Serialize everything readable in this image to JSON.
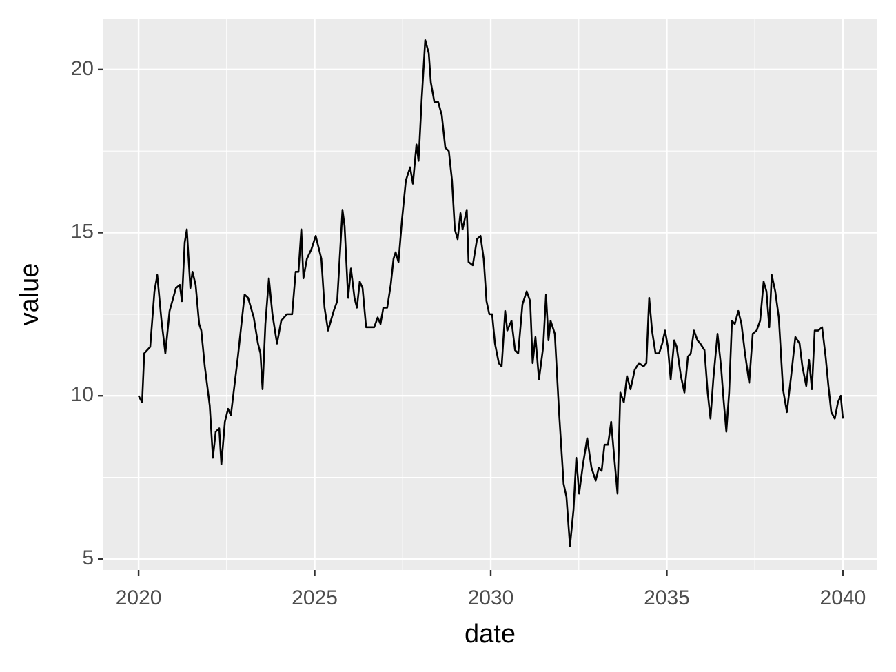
{
  "chart_data": {
    "type": "line",
    "xlabel": "date",
    "ylabel": "value",
    "x": [
      2020.0,
      2020.1,
      2020.16,
      2020.33,
      2020.45,
      2020.53,
      2020.65,
      2020.76,
      2020.88,
      2021.06,
      2021.17,
      2021.23,
      2021.31,
      2021.37,
      2021.47,
      2021.53,
      2021.62,
      2021.72,
      2021.78,
      2021.88,
      2022.02,
      2022.11,
      2022.19,
      2022.29,
      2022.35,
      2022.45,
      2022.54,
      2022.62,
      2022.82,
      2023.01,
      2023.11,
      2023.27,
      2023.39,
      2023.46,
      2023.52,
      2023.6,
      2023.7,
      2023.8,
      2023.93,
      2024.05,
      2024.21,
      2024.36,
      2024.46,
      2024.54,
      2024.62,
      2024.68,
      2024.78,
      2024.91,
      2025.03,
      2025.19,
      2025.28,
      2025.38,
      2025.54,
      2025.64,
      2025.79,
      2025.85,
      2025.95,
      2026.03,
      2026.13,
      2026.2,
      2026.28,
      2026.36,
      2026.46,
      2026.58,
      2026.69,
      2026.79,
      2026.87,
      2026.95,
      2027.06,
      2027.16,
      2027.24,
      2027.3,
      2027.38,
      2027.48,
      2027.59,
      2027.71,
      2027.79,
      2027.89,
      2027.95,
      2028.04,
      2028.14,
      2028.24,
      2028.3,
      2028.4,
      2028.51,
      2028.61,
      2028.71,
      2028.81,
      2028.9,
      2028.98,
      2029.06,
      2029.14,
      2029.2,
      2029.32,
      2029.37,
      2029.49,
      2029.61,
      2029.71,
      2029.8,
      2029.88,
      2029.96,
      2030.04,
      2030.12,
      2030.23,
      2030.31,
      2030.41,
      2030.47,
      2030.59,
      2030.69,
      2030.78,
      2030.9,
      2031.02,
      2031.12,
      2031.19,
      2031.27,
      2031.37,
      2031.49,
      2031.57,
      2031.64,
      2031.7,
      2031.82,
      2031.94,
      2032.07,
      2032.15,
      2032.25,
      2032.35,
      2032.43,
      2032.51,
      2032.62,
      2032.74,
      2032.86,
      2032.98,
      2033.07,
      2033.15,
      2033.23,
      2033.33,
      2033.42,
      2033.5,
      2033.6,
      2033.68,
      2033.78,
      2033.87,
      2033.97,
      2034.09,
      2034.21,
      2034.34,
      2034.42,
      2034.5,
      2034.58,
      2034.68,
      2034.78,
      2034.87,
      2034.95,
      2035.03,
      2035.11,
      2035.21,
      2035.28,
      2035.4,
      2035.5,
      2035.6,
      2035.68,
      2035.77,
      2035.87,
      2035.95,
      2036.07,
      2036.16,
      2036.24,
      2036.32,
      2036.44,
      2036.54,
      2036.61,
      2036.69,
      2036.77,
      2036.85,
      2036.93,
      2037.03,
      2037.12,
      2037.22,
      2037.34,
      2037.44,
      2037.55,
      2037.65,
      2037.75,
      2037.83,
      2037.91,
      2037.98,
      2038.08,
      2038.18,
      2038.3,
      2038.41,
      2038.53,
      2038.65,
      2038.77,
      2038.85,
      2038.96,
      2039.04,
      2039.12,
      2039.2,
      2039.3,
      2039.41,
      2039.51,
      2039.59,
      2039.67,
      2039.77,
      2039.86,
      2039.94,
      2040.0
    ],
    "values": [
      10.0,
      9.8,
      11.3,
      11.5,
      13.2,
      13.7,
      12.3,
      11.3,
      12.6,
      13.3,
      13.4,
      12.9,
      14.7,
      15.1,
      13.3,
      13.8,
      13.4,
      12.2,
      12.0,
      10.9,
      9.7,
      8.1,
      8.9,
      9.0,
      7.9,
      9.2,
      9.6,
      9.4,
      11.2,
      13.1,
      13.0,
      12.4,
      11.6,
      11.3,
      10.2,
      12.2,
      13.6,
      12.5,
      11.6,
      12.3,
      12.5,
      12.5,
      13.8,
      13.8,
      15.1,
      13.6,
      14.2,
      14.5,
      14.9,
      14.2,
      12.7,
      12.0,
      12.6,
      12.9,
      15.7,
      15.2,
      13.0,
      13.9,
      13.0,
      12.7,
      13.5,
      13.3,
      12.1,
      12.1,
      12.1,
      12.4,
      12.2,
      12.7,
      12.7,
      13.4,
      14.2,
      14.4,
      14.1,
      15.4,
      16.6,
      17.0,
      16.5,
      17.7,
      17.2,
      19.1,
      20.9,
      20.5,
      19.6,
      19.0,
      19.0,
      18.6,
      17.6,
      17.5,
      16.6,
      15.1,
      14.8,
      15.6,
      15.1,
      15.7,
      14.1,
      14.0,
      14.8,
      14.9,
      14.2,
      12.9,
      12.5,
      12.5,
      11.6,
      11.0,
      10.9,
      12.6,
      12.0,
      12.3,
      11.4,
      11.3,
      12.8,
      13.2,
      12.9,
      11.0,
      11.8,
      10.5,
      11.5,
      13.1,
      11.7,
      12.3,
      11.9,
      9.5,
      7.3,
      6.9,
      5.4,
      6.5,
      8.1,
      7.0,
      7.9,
      8.7,
      7.8,
      7.4,
      7.8,
      7.7,
      8.5,
      8.5,
      9.2,
      8.2,
      7.0,
      10.1,
      9.8,
      10.6,
      10.2,
      10.8,
      11.0,
      10.9,
      11.0,
      13.0,
      12.0,
      11.3,
      11.3,
      11.6,
      12.0,
      11.5,
      10.5,
      11.7,
      11.5,
      10.6,
      10.1,
      11.2,
      11.3,
      12.0,
      11.7,
      11.6,
      11.4,
      10.1,
      9.3,
      10.5,
      11.9,
      10.9,
      9.9,
      8.9,
      10.1,
      12.3,
      12.2,
      12.6,
      12.2,
      11.3,
      10.4,
      11.9,
      12.0,
      12.3,
      13.5,
      13.2,
      12.1,
      13.7,
      13.2,
      12.4,
      10.2,
      9.5,
      10.6,
      11.8,
      11.6,
      10.9,
      10.3,
      11.1,
      10.2,
      12.0,
      12.0,
      12.1,
      11.2,
      10.3,
      9.5,
      9.3,
      9.8,
      10.0,
      9.3
    ],
    "color": "#000000",
    "xlim": [
      2019.0,
      2040.98
    ],
    "xticks": [
      2020,
      2025,
      2030,
      2035,
      2040
    ],
    "xminor": [
      2022.5,
      2027.5,
      2032.5,
      2037.5
    ],
    "ylim": [
      4.66,
      21.56
    ],
    "yticks": [
      5,
      10,
      15,
      20
    ],
    "yminor": [
      7.5,
      12.5,
      17.5
    ],
    "grid": true
  }
}
